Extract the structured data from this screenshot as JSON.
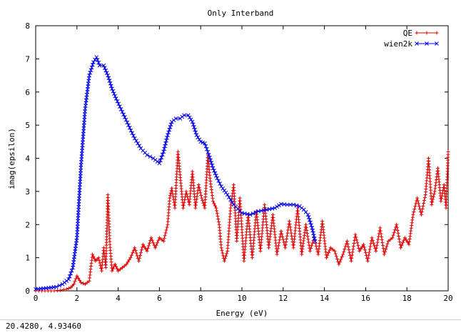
{
  "window": {
    "title": "Only Interband"
  },
  "status": {
    "coords": "20.4280,  4.93460"
  },
  "colors": {
    "qe": "#e00000",
    "wien2k": "#0000e8",
    "axis": "#000000"
  },
  "chart_data": {
    "type": "line",
    "title": "Only Interband",
    "xlabel": "Energy (eV)",
    "ylabel": "imag(epsilon)",
    "xlim": [
      0,
      20
    ],
    "ylim": [
      0,
      8
    ],
    "xticks": [
      0,
      2,
      4,
      6,
      8,
      10,
      12,
      14,
      16,
      18,
      20
    ],
    "yticks": [
      0,
      1,
      2,
      3,
      4,
      5,
      6,
      7,
      8
    ],
    "legend_position": "top-right",
    "series": [
      {
        "name": "QE",
        "marker": "+",
        "x": [
          0.0,
          0.3,
          0.6,
          0.9,
          1.2,
          1.5,
          1.7,
          1.85,
          2.0,
          2.2,
          2.4,
          2.6,
          2.75,
          2.9,
          3.05,
          3.2,
          3.3,
          3.4,
          3.5,
          3.6,
          3.7,
          3.85,
          4.0,
          4.2,
          4.4,
          4.6,
          4.8,
          5.0,
          5.2,
          5.4,
          5.6,
          5.8,
          6.0,
          6.2,
          6.4,
          6.5,
          6.6,
          6.75,
          6.9,
          7.0,
          7.15,
          7.3,
          7.45,
          7.6,
          7.75,
          7.9,
          8.05,
          8.2,
          8.35,
          8.45,
          8.6,
          8.75,
          8.9,
          9.0,
          9.15,
          9.3,
          9.45,
          9.6,
          9.75,
          9.9,
          10.1,
          10.3,
          10.5,
          10.7,
          10.9,
          11.1,
          11.3,
          11.5,
          11.7,
          11.9,
          12.1,
          12.3,
          12.5,
          12.7,
          12.9,
          13.1,
          13.3,
          13.5,
          13.7,
          13.9,
          14.1,
          14.3,
          14.5,
          14.7,
          14.9,
          15.1,
          15.3,
          15.5,
          15.7,
          15.9,
          16.1,
          16.3,
          16.5,
          16.7,
          16.9,
          17.1,
          17.3,
          17.5,
          17.7,
          17.9,
          18.1,
          18.3,
          18.5,
          18.7,
          18.9,
          19.05,
          19.2,
          19.35,
          19.5,
          19.65,
          19.8,
          19.9,
          20.0
        ],
        "y": [
          0.0,
          0.0,
          0.0,
          0.0,
          0.02,
          0.05,
          0.1,
          0.2,
          0.45,
          0.25,
          0.2,
          0.3,
          1.1,
          0.9,
          1.0,
          0.6,
          1.3,
          0.7,
          2.9,
          1.4,
          0.6,
          0.8,
          0.6,
          0.7,
          0.8,
          1.0,
          1.3,
          0.9,
          1.4,
          1.2,
          1.6,
          1.3,
          1.6,
          1.5,
          2.0,
          2.8,
          3.1,
          2.5,
          4.2,
          3.5,
          2.5,
          3.0,
          2.6,
          3.6,
          2.5,
          3.2,
          2.8,
          2.5,
          4.1,
          3.4,
          2.7,
          2.5,
          2.0,
          1.3,
          0.9,
          1.2,
          2.5,
          3.2,
          1.5,
          2.8,
          0.9,
          2.3,
          1.0,
          2.4,
          1.2,
          2.6,
          1.3,
          2.3,
          1.1,
          1.8,
          1.3,
          2.1,
          1.3,
          2.5,
          1.1,
          2.0,
          1.2,
          1.6,
          1.1,
          2.1,
          1.0,
          1.3,
          1.2,
          0.8,
          1.1,
          1.5,
          0.9,
          1.7,
          1.2,
          1.4,
          0.9,
          1.6,
          1.2,
          1.9,
          1.1,
          1.5,
          1.6,
          2.0,
          1.3,
          1.6,
          1.4,
          2.3,
          2.8,
          2.3,
          2.9,
          4.0,
          2.6,
          3.0,
          3.7,
          2.7,
          3.2,
          2.5,
          4.2
        ]
      },
      {
        "name": "wien2k",
        "marker": "x",
        "x": [
          0.0,
          0.5,
          1.0,
          1.3,
          1.6,
          1.8,
          2.0,
          2.2,
          2.4,
          2.6,
          2.8,
          2.95,
          3.1,
          3.3,
          3.5,
          3.7,
          3.9,
          4.2,
          4.5,
          4.8,
          5.1,
          5.4,
          5.7,
          6.0,
          6.2,
          6.4,
          6.6,
          6.8,
          7.0,
          7.2,
          7.4,
          7.6,
          7.8,
          8.0,
          8.2,
          8.4,
          8.6,
          8.8,
          9.0,
          9.3,
          9.6,
          10.0,
          10.4,
          10.8,
          11.2,
          11.6,
          11.9,
          12.2,
          12.5,
          12.8,
          13.0,
          13.2,
          13.4,
          13.55
        ],
        "y": [
          0.05,
          0.08,
          0.12,
          0.2,
          0.35,
          0.7,
          1.6,
          3.8,
          5.5,
          6.5,
          6.9,
          7.05,
          6.8,
          6.8,
          6.5,
          6.1,
          5.8,
          5.4,
          5.0,
          4.6,
          4.3,
          4.1,
          4.0,
          3.85,
          4.2,
          4.7,
          5.1,
          5.2,
          5.2,
          5.3,
          5.3,
          5.1,
          4.7,
          4.5,
          4.45,
          4.1,
          3.7,
          3.4,
          3.15,
          2.9,
          2.6,
          2.35,
          2.3,
          2.4,
          2.45,
          2.5,
          2.62,
          2.6,
          2.6,
          2.55,
          2.45,
          2.3,
          1.9,
          1.5
        ]
      }
    ]
  }
}
